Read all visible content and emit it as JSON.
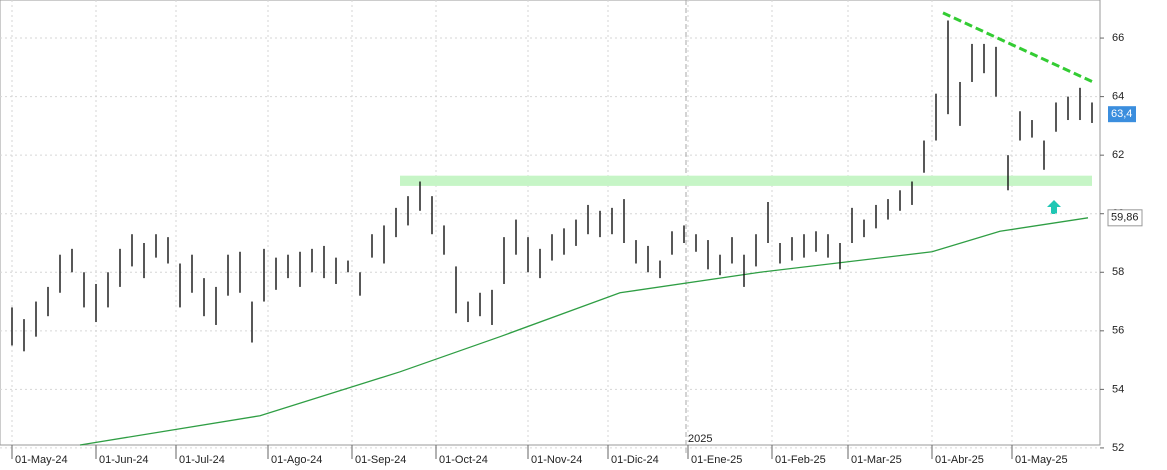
{
  "chart_data": {
    "type": "hlc-bars",
    "xlim": [
      -3,
      272
    ],
    "ylim": [
      52.1,
      67.3
    ],
    "yticks": [
      52,
      54,
      56,
      58,
      60,
      62,
      64,
      66
    ],
    "xticks": [
      {
        "value": 0,
        "label": "01-May-24"
      },
      {
        "value": 21,
        "label": "01-Jun-24"
      },
      {
        "value": 41,
        "label": "01-Jul-24"
      },
      {
        "value": 64,
        "label": "01-Ago-24"
      },
      {
        "value": 85,
        "label": "01-Sep-24"
      },
      {
        "value": 106,
        "label": "01-Oct-24"
      },
      {
        "value": 129,
        "label": "01-Nov-24"
      },
      {
        "value": 149,
        "label": "01-Dic-24"
      },
      {
        "value": 169,
        "label": "01-Ene-25"
      },
      {
        "value": 190,
        "label": "01-Feb-25"
      },
      {
        "value": 209,
        "label": "01-Mar-25"
      },
      {
        "value": 230,
        "label": "01-Abr-25"
      },
      {
        "value": 250,
        "label": "01-May-25"
      }
    ],
    "grid": true,
    "x": [
      0,
      3,
      6,
      9,
      12,
      15,
      18,
      21,
      24,
      27,
      30,
      33,
      36,
      39,
      42,
      45,
      48,
      51,
      54,
      57,
      60,
      63,
      66,
      69,
      72,
      75,
      78,
      81,
      84,
      87,
      90,
      93,
      96,
      99,
      102,
      105,
      108,
      111,
      114,
      117,
      120,
      123,
      126,
      129,
      132,
      135,
      138,
      141,
      144,
      147,
      150,
      153,
      156,
      159,
      162,
      165,
      168,
      171,
      174,
      177,
      180,
      183,
      186,
      189,
      192,
      195,
      198,
      201,
      204,
      207,
      210,
      213,
      216,
      219,
      222,
      225,
      228,
      231,
      234,
      237,
      240,
      243,
      246,
      249,
      252,
      255,
      258,
      261,
      264,
      267,
      270
    ],
    "high": [
      56.8,
      56.4,
      57.0,
      57.5,
      58.6,
      58.8,
      58.0,
      57.6,
      58.0,
      58.8,
      59.3,
      59.0,
      59.3,
      59.2,
      58.3,
      58.6,
      57.8,
      57.5,
      58.6,
      58.7,
      57.0,
      58.8,
      58.5,
      58.6,
      58.7,
      58.8,
      58.9,
      58.5,
      58.4,
      58.0,
      59.3,
      59.6,
      60.2,
      60.6,
      61.1,
      60.6,
      59.6,
      58.2,
      57.0,
      57.3,
      57.4,
      59.2,
      59.8,
      59.2,
      58.8,
      59.3,
      59.5,
      59.8,
      60.3,
      60.1,
      60.2,
      60.5,
      59.1,
      58.9,
      58.4,
      59.4,
      59.6,
      59.3,
      59.1,
      58.6,
      59.2,
      58.6,
      59.3,
      60.4,
      59.0,
      59.2,
      59.3,
      59.4,
      59.3,
      59.0,
      60.2,
      59.8,
      60.3,
      60.5,
      60.8,
      61.1,
      62.5,
      64.1,
      66.6,
      64.5,
      65.8,
      65.8,
      65.7,
      62.0,
      63.5,
      63.2,
      62.5,
      63.8,
      64.0,
      64.3,
      63.8
    ],
    "low": [
      55.5,
      55.3,
      55.8,
      56.5,
      57.3,
      58.0,
      56.8,
      56.3,
      56.8,
      57.5,
      58.2,
      57.8,
      58.5,
      58.3,
      56.8,
      57.3,
      56.5,
      56.2,
      57.2,
      57.3,
      55.6,
      57.0,
      57.4,
      57.8,
      57.5,
      58.0,
      57.8,
      57.6,
      58.0,
      57.2,
      58.5,
      58.3,
      59.2,
      59.6,
      60.1,
      59.3,
      58.6,
      56.6,
      56.3,
      56.5,
      56.2,
      57.6,
      58.6,
      58.0,
      57.8,
      58.4,
      58.6,
      58.9,
      59.3,
      59.2,
      59.3,
      59.0,
      58.3,
      58.0,
      57.8,
      58.6,
      59.0,
      58.7,
      58.1,
      57.9,
      58.3,
      57.5,
      58.2,
      59.0,
      58.3,
      58.4,
      58.5,
      58.7,
      58.5,
      58.1,
      59.0,
      59.2,
      59.5,
      59.8,
      60.1,
      60.3,
      61.4,
      62.5,
      63.4,
      63.0,
      64.5,
      64.8,
      64.0,
      60.8,
      62.5,
      62.6,
      61.5,
      62.8,
      63.2,
      63.2,
      63.1
    ],
    "moving_average": {
      "x": [
        17,
        62,
        97,
        122,
        152,
        187,
        230,
        247,
        269
      ],
      "values": [
        52.1,
        53.1,
        54.6,
        55.8,
        57.3,
        58.0,
        58.7,
        59.4,
        59.86
      ]
    },
    "support_band": {
      "x": [
        97,
        270
      ],
      "y": [
        60.95,
        61.3
      ]
    },
    "trendline": {
      "x": [
        232.75,
        270.25
      ],
      "values": [
        66.86,
        64.5
      ]
    },
    "year_marker": {
      "x": 168.5,
      "label": "2025"
    },
    "last_price": {
      "value": 63.4,
      "label": "63,4"
    },
    "ma_last": {
      "value": 59.86,
      "label": "59,86"
    }
  }
}
